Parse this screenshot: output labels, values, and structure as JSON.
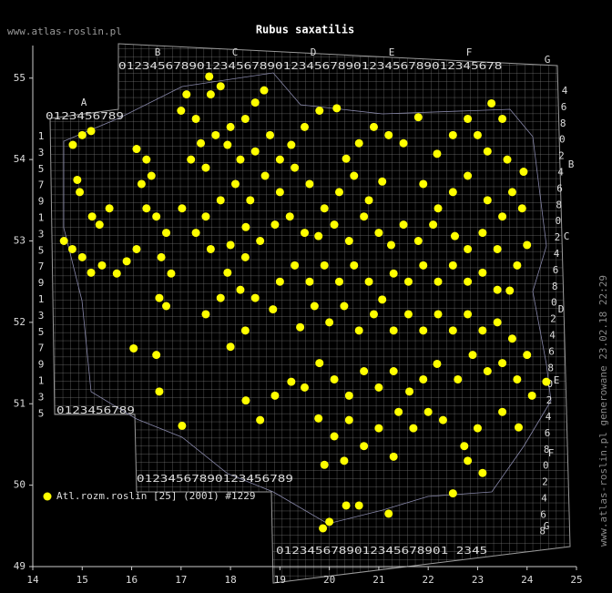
{
  "chart_data": {
    "type": "scatter",
    "title": "Rubus saxatilis",
    "site": "www.atlas-roslin.pl",
    "side_note": "www.atlas-roslin.pl generowane 23.02.18 22:29",
    "xlim": [
      14,
      25
    ],
    "ylim": [
      49,
      55.4
    ],
    "xticks": [
      14,
      15,
      16,
      17,
      18,
      19,
      20,
      21,
      22,
      23,
      24,
      25
    ],
    "yticks": [
      49,
      50,
      51,
      52,
      53,
      54,
      55
    ],
    "grid_letters": [
      "A",
      "B",
      "C",
      "D",
      "E",
      "F",
      "G",
      "B",
      "C",
      "D",
      "E",
      "F",
      "G"
    ],
    "grid_rows": [
      "0123456789012345678901234567890123456789012345678",
      "0123456789",
      "0123456789",
      "01234567890123456789",
      "0123456789012345678901 2345"
    ],
    "left_column": [
      "1",
      "3",
      "5",
      "7",
      "9",
      "1",
      "3",
      "5",
      "7",
      "9",
      "1",
      "3",
      "5",
      "7",
      "9",
      "1",
      "3",
      "5"
    ],
    "right_column": [
      "4",
      "6",
      "8",
      "0",
      "2",
      "4",
      "6",
      "8",
      "0",
      "2",
      "4",
      "6",
      "8",
      "0",
      "2",
      "4",
      "6",
      "8",
      "0",
      "2",
      "4",
      "6",
      "8",
      "0",
      "2",
      "4",
      "6",
      "8"
    ],
    "series": [
      {
        "name": "Atl.rozm.roslin [25] (2001) #1229",
        "color": "#ffff00",
        "points": [
          [
            15.18,
            54.35
          ],
          [
            14.81,
            54.18
          ],
          [
            15.0,
            54.3
          ],
          [
            14.9,
            53.75
          ],
          [
            14.95,
            53.6
          ],
          [
            15.2,
            53.3
          ],
          [
            15.35,
            53.2
          ],
          [
            15.55,
            53.4
          ],
          [
            14.63,
            53.0
          ],
          [
            14.8,
            52.9
          ],
          [
            15.0,
            52.8
          ],
          [
            15.18,
            52.61
          ],
          [
            15.4,
            52.7
          ],
          [
            15.7,
            52.6
          ],
          [
            15.9,
            52.75
          ],
          [
            16.1,
            52.9
          ],
          [
            16.1,
            54.13
          ],
          [
            16.3,
            54.0
          ],
          [
            16.4,
            53.8
          ],
          [
            16.2,
            53.7
          ],
          [
            16.3,
            53.4
          ],
          [
            16.5,
            53.3
          ],
          [
            16.7,
            53.1
          ],
          [
            16.6,
            52.8
          ],
          [
            16.8,
            52.6
          ],
          [
            16.56,
            52.3
          ],
          [
            16.7,
            52.2
          ],
          [
            17.11,
            54.8
          ],
          [
            17.0,
            54.6
          ],
          [
            17.3,
            54.5
          ],
          [
            17.57,
            55.02
          ],
          [
            17.6,
            54.8
          ],
          [
            17.8,
            54.9
          ],
          [
            18.68,
            54.85
          ],
          [
            18.5,
            54.7
          ],
          [
            18.3,
            54.5
          ],
          [
            18.0,
            54.4
          ],
          [
            17.7,
            54.3
          ],
          [
            17.4,
            54.2
          ],
          [
            17.2,
            54.0
          ],
          [
            17.5,
            53.9
          ],
          [
            17.94,
            54.18
          ],
          [
            18.2,
            54.0
          ],
          [
            18.5,
            54.1
          ],
          [
            18.8,
            54.3
          ],
          [
            19.0,
            54.0
          ],
          [
            19.23,
            54.18
          ],
          [
            19.5,
            54.4
          ],
          [
            19.8,
            54.6
          ],
          [
            20.15,
            54.63
          ],
          [
            20.34,
            54.01
          ],
          [
            20.6,
            54.2
          ],
          [
            20.9,
            54.4
          ],
          [
            21.2,
            54.3
          ],
          [
            21.5,
            54.2
          ],
          [
            21.8,
            54.52
          ],
          [
            22.18,
            54.07
          ],
          [
            22.5,
            54.3
          ],
          [
            22.8,
            54.5
          ],
          [
            23.0,
            54.3
          ],
          [
            23.28,
            54.69
          ],
          [
            23.5,
            54.5
          ],
          [
            23.2,
            54.1
          ],
          [
            23.6,
            54.0
          ],
          [
            23.93,
            53.85
          ],
          [
            23.7,
            53.6
          ],
          [
            23.9,
            53.4
          ],
          [
            23.5,
            53.3
          ],
          [
            23.2,
            53.5
          ],
          [
            22.8,
            53.8
          ],
          [
            22.5,
            53.6
          ],
          [
            22.2,
            53.4
          ],
          [
            21.9,
            53.7
          ],
          [
            21.07,
            53.73
          ],
          [
            20.8,
            53.5
          ],
          [
            20.5,
            53.8
          ],
          [
            20.2,
            53.6
          ],
          [
            19.9,
            53.4
          ],
          [
            19.6,
            53.7
          ],
          [
            19.3,
            53.9
          ],
          [
            19.0,
            53.6
          ],
          [
            18.7,
            53.8
          ],
          [
            18.4,
            53.5
          ],
          [
            18.1,
            53.7
          ],
          [
            17.8,
            53.5
          ],
          [
            17.5,
            53.3
          ],
          [
            17.02,
            53.4
          ],
          [
            17.3,
            53.1
          ],
          [
            17.6,
            52.9
          ],
          [
            18.31,
            53.17
          ],
          [
            18.0,
            52.95
          ],
          [
            17.94,
            52.61
          ],
          [
            18.3,
            52.8
          ],
          [
            18.6,
            53.0
          ],
          [
            18.9,
            53.2
          ],
          [
            19.2,
            53.3
          ],
          [
            19.5,
            53.1
          ],
          [
            19.78,
            53.06
          ],
          [
            20.1,
            53.2
          ],
          [
            20.4,
            53.0
          ],
          [
            20.7,
            53.3
          ],
          [
            21.0,
            53.1
          ],
          [
            21.25,
            52.95
          ],
          [
            21.5,
            53.2
          ],
          [
            21.8,
            53.0
          ],
          [
            22.1,
            53.2
          ],
          [
            22.54,
            53.06
          ],
          [
            22.8,
            52.9
          ],
          [
            23.1,
            53.1
          ],
          [
            23.4,
            52.9
          ],
          [
            24.0,
            52.95
          ],
          [
            23.8,
            52.7
          ],
          [
            23.1,
            52.61
          ],
          [
            23.4,
            52.4
          ],
          [
            23.65,
            52.39
          ],
          [
            22.8,
            52.5
          ],
          [
            22.5,
            52.7
          ],
          [
            22.2,
            52.5
          ],
          [
            21.9,
            52.7
          ],
          [
            21.6,
            52.5
          ],
          [
            21.3,
            52.6
          ],
          [
            21.07,
            52.28
          ],
          [
            20.8,
            52.5
          ],
          [
            20.5,
            52.7
          ],
          [
            20.2,
            52.5
          ],
          [
            19.9,
            52.7
          ],
          [
            19.6,
            52.5
          ],
          [
            19.3,
            52.7
          ],
          [
            19.0,
            52.5
          ],
          [
            18.86,
            52.16
          ],
          [
            18.5,
            52.3
          ],
          [
            18.2,
            52.4
          ],
          [
            17.8,
            52.3
          ],
          [
            17.5,
            52.1
          ],
          [
            19.41,
            51.94
          ],
          [
            19.7,
            52.2
          ],
          [
            20.0,
            52.0
          ],
          [
            20.3,
            52.2
          ],
          [
            20.6,
            51.9
          ],
          [
            20.9,
            52.1
          ],
          [
            21.3,
            51.9
          ],
          [
            21.6,
            52.1
          ],
          [
            21.9,
            51.9
          ],
          [
            22.2,
            52.1
          ],
          [
            22.5,
            51.9
          ],
          [
            22.8,
            52.1
          ],
          [
            23.1,
            51.9
          ],
          [
            23.4,
            52.0
          ],
          [
            23.7,
            51.8
          ],
          [
            24.0,
            51.6
          ],
          [
            24.39,
            51.27
          ],
          [
            24.1,
            51.1
          ],
          [
            23.8,
            51.3
          ],
          [
            23.5,
            51.5
          ],
          [
            23.2,
            51.4
          ],
          [
            22.9,
            51.6
          ],
          [
            22.6,
            51.3
          ],
          [
            22.18,
            51.49
          ],
          [
            21.9,
            51.3
          ],
          [
            21.62,
            51.15
          ],
          [
            21.3,
            51.4
          ],
          [
            21.0,
            51.2
          ],
          [
            20.7,
            51.4
          ],
          [
            20.4,
            51.1
          ],
          [
            20.1,
            51.3
          ],
          [
            19.8,
            51.5
          ],
          [
            19.5,
            51.2
          ],
          [
            19.23,
            51.27
          ],
          [
            18.9,
            51.1
          ],
          [
            18.31,
            51.04
          ],
          [
            18.6,
            50.8
          ],
          [
            19.78,
            50.82
          ],
          [
            20.1,
            50.6
          ],
          [
            20.4,
            50.8
          ],
          [
            20.7,
            50.48
          ],
          [
            21.0,
            50.7
          ],
          [
            21.4,
            50.9
          ],
          [
            21.7,
            50.7
          ],
          [
            22.0,
            50.9
          ],
          [
            22.3,
            50.8
          ],
          [
            22.73,
            50.48
          ],
          [
            23.0,
            50.7
          ],
          [
            23.83,
            50.71
          ],
          [
            23.5,
            50.9
          ],
          [
            23.1,
            50.15
          ],
          [
            22.8,
            50.3
          ],
          [
            22.5,
            49.9
          ],
          [
            20.34,
            49.75
          ],
          [
            20.6,
            49.75
          ],
          [
            19.87,
            49.47
          ],
          [
            20.0,
            49.55
          ],
          [
            21.2,
            49.65
          ],
          [
            17.02,
            50.73
          ],
          [
            16.04,
            51.68
          ],
          [
            16.56,
            51.15
          ],
          [
            16.5,
            51.6
          ],
          [
            18.0,
            51.7
          ],
          [
            18.3,
            51.9
          ],
          [
            19.9,
            50.25
          ],
          [
            20.3,
            50.3
          ],
          [
            21.3,
            50.35
          ]
        ]
      }
    ]
  }
}
